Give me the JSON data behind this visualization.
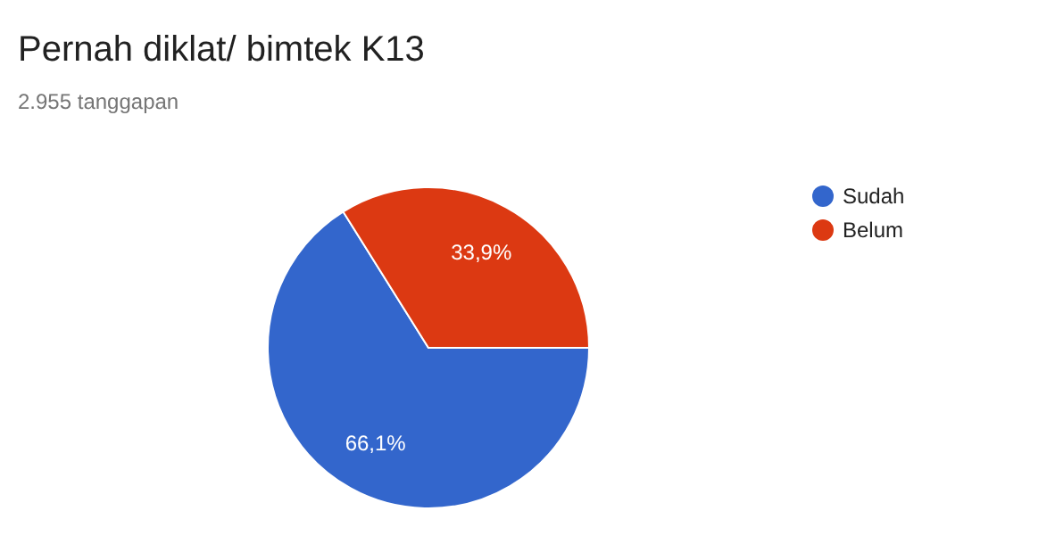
{
  "chart_data": {
    "type": "pie",
    "title": "Pernah diklat/ bimtek K13",
    "subtitle": "2.955 tanggapan",
    "categories": [
      "Sudah",
      "Belum"
    ],
    "values": [
      66.1,
      33.9
    ],
    "value_labels": [
      "66,1%",
      "33,9%"
    ],
    "colors": [
      "#3366cc",
      "#dc3912"
    ],
    "legend": "right"
  }
}
